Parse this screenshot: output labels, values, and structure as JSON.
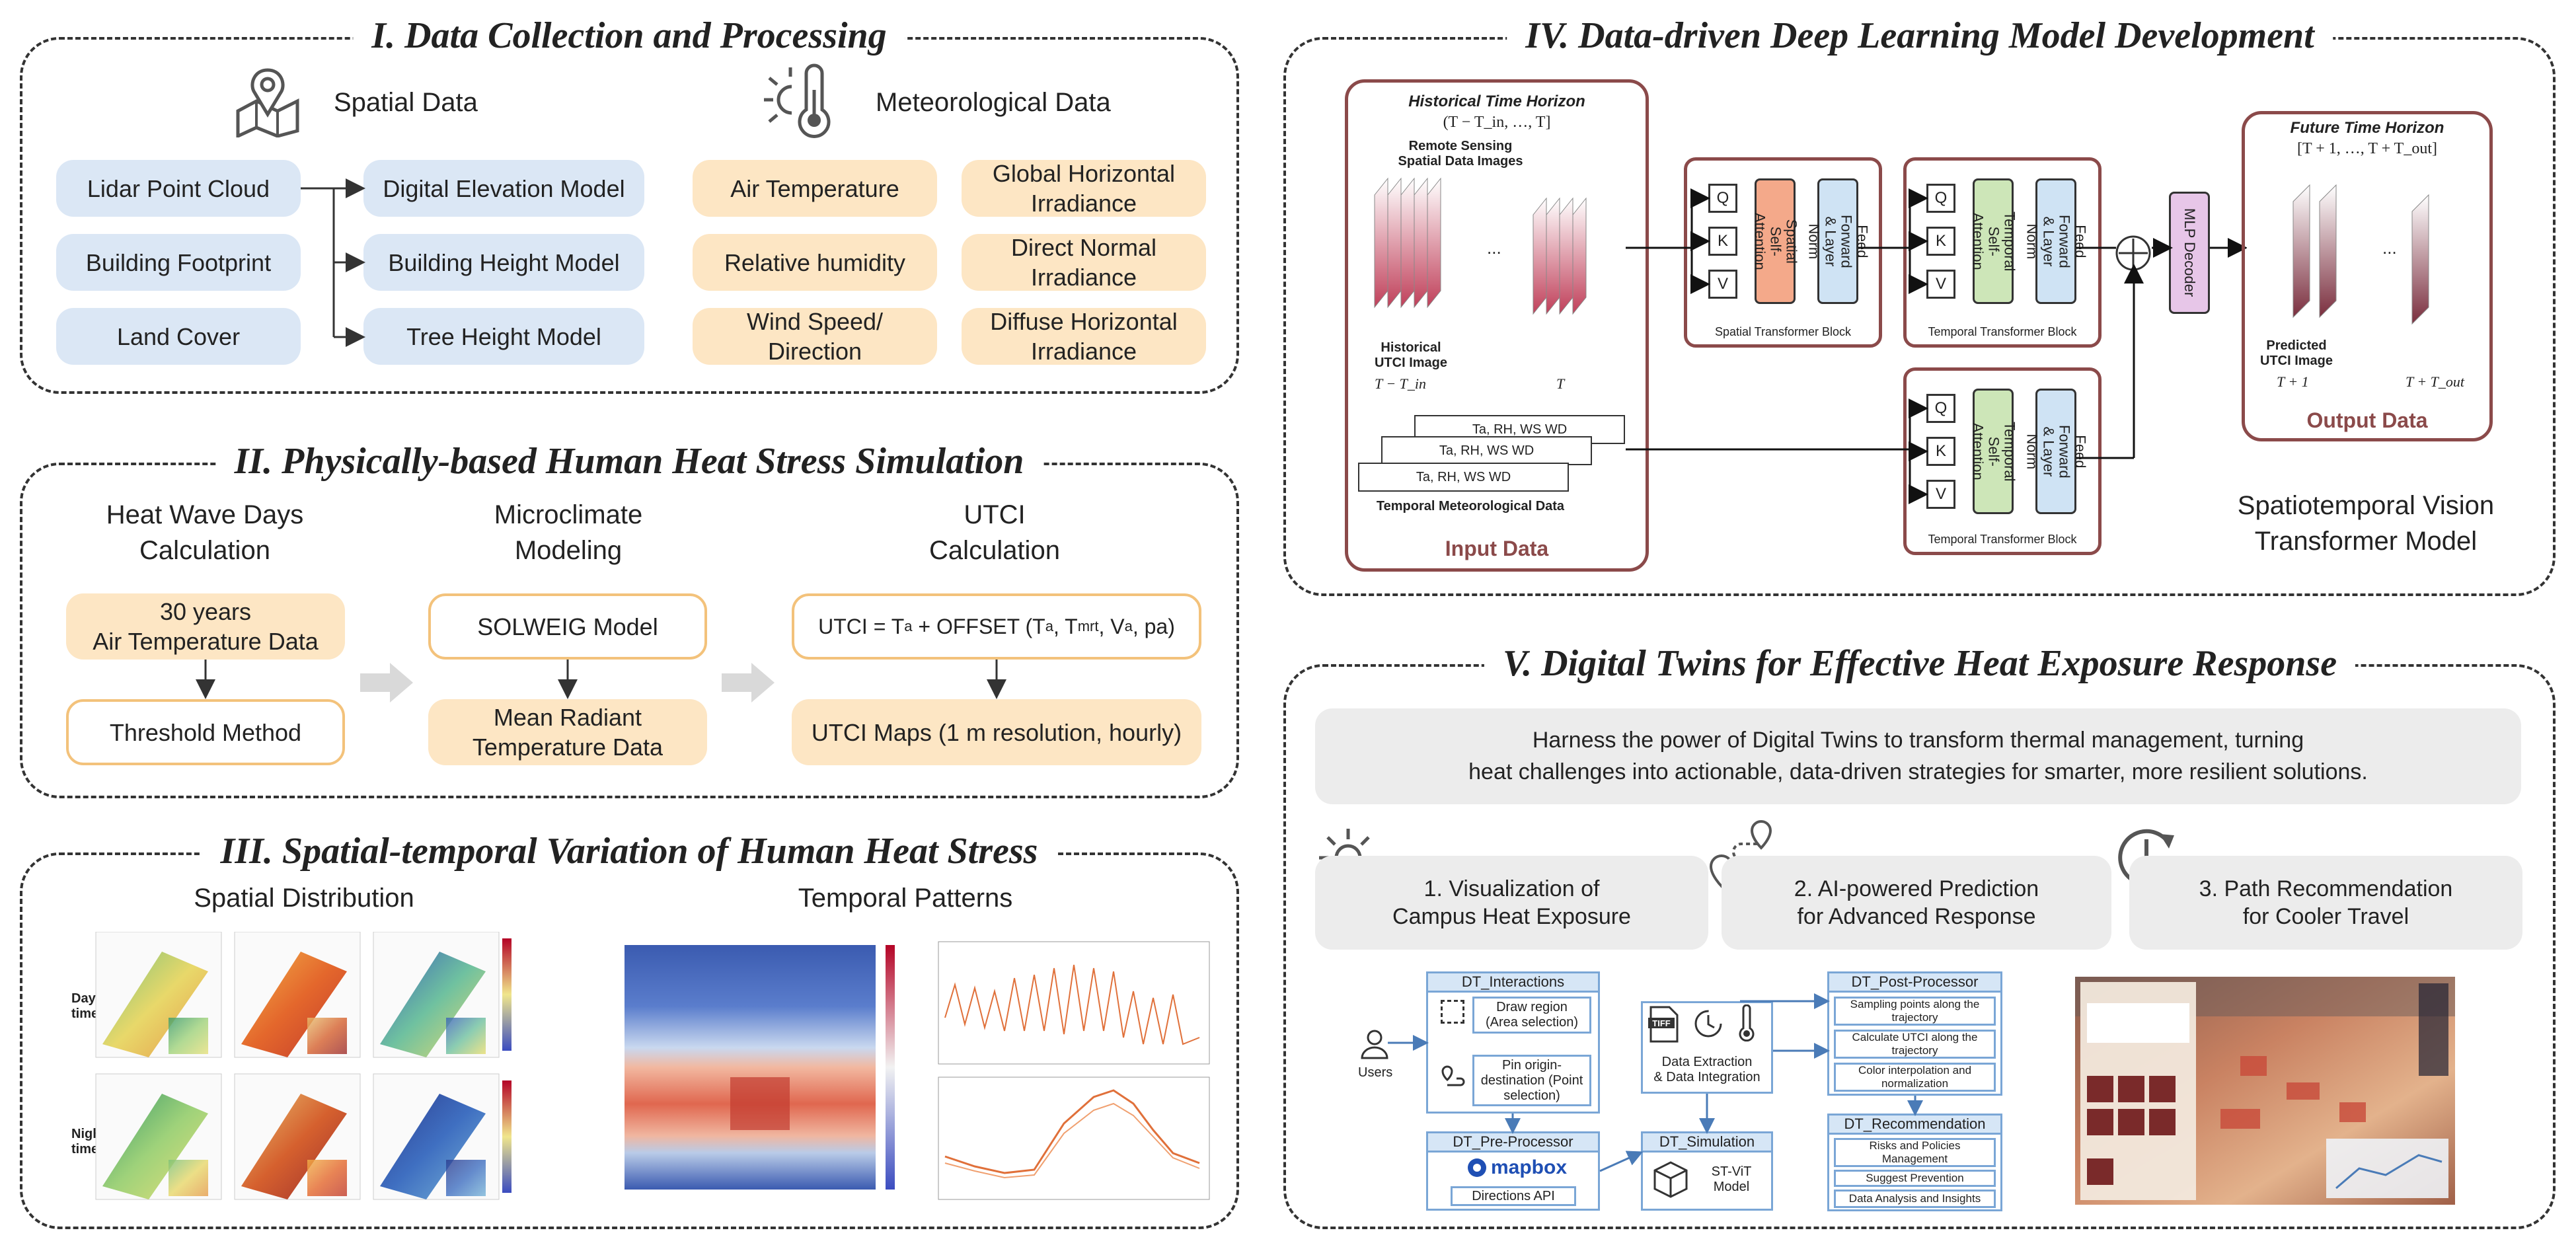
{
  "sections": {
    "s1": "I. Data Collection and Processing",
    "s2": "II. Physically-based Human Heat Stress Simulation",
    "s3": "III. Spatial-temporal Variation of Human Heat Stress",
    "s4": "IV. Data-driven Deep Learning Model Development",
    "s5": "V. Digital Twins for Effective Heat Exposure Response"
  },
  "s1": {
    "spatial_title": "Spatial Data",
    "met_title": "Meteorological Data",
    "left": [
      "Lidar Point Cloud",
      "Building Footprint",
      "Land Cover"
    ],
    "mid": [
      "Digital Elevation Model",
      "Building Height Model",
      "Tree Height Model"
    ],
    "met1": [
      "Air Temperature",
      "Relative humidity",
      "Wind Speed/\nDirection"
    ],
    "met2": [
      "Global Horizontal\nIrradiance",
      "Direct Normal\nIrradiance",
      "Diffuse Horizontal\nIrradiance"
    ]
  },
  "s2": {
    "h1": "Heat Wave Days\nCalculation",
    "h2": "Microclimate\nModeling",
    "h3": "UTCI\nCalculation",
    "b1": "30 years\nAir Temperature Data",
    "b2": "Threshold Method",
    "b3": "SOLWEIG Model",
    "b4": "Mean Radiant\nTemperature Data",
    "b5": "UTCI Maps (1 m resolution, hourly)"
  },
  "s3": {
    "spatial": "Spatial Distribution",
    "temporal": "Temporal Patterns",
    "day": "Day\ntime",
    "night": "Night\ntime"
  },
  "s4": {
    "hist_title": "Historical Time Horizon",
    "hist_range": "(T − T_in, …, T]",
    "rs": "Remote Sensing\nSpatial Data Images",
    "hist_utci": "Historical\nUTCI Image",
    "t_in": "T − T_in",
    "t": "T",
    "ellipsis": "...",
    "met_rows": [
      "Ta, RH, WS WD",
      "Ta, RH, WS WD",
      "Ta, RH, WS WD"
    ],
    "met_caption": "Temporal Meteorological Data",
    "input": "Input Data",
    "spatial_block": "Spatial Transformer Block",
    "temporal_block": "Temporal Transformer Block",
    "spatial_sa": "Spatial\nSelf-Attention",
    "temporal_sa": "Temporal\nSelf-Attention",
    "ff": "Feed Forward\n& Layer Norm",
    "q": "Q",
    "k": "K",
    "v": "V",
    "mlp": "MLP Decoder",
    "future_title": "Future Time Horizon",
    "future_range": "[T + 1, …, T + T_out]",
    "pred": "Predicted\nUTCI Image",
    "t1": "T + 1",
    "tout": "T + T_out",
    "output": "Output Data",
    "model": "Spatiotemporal Vision\nTransformer Model"
  },
  "s5": {
    "banner": "Harness the power of Digital Twins to transform thermal management, turning\nheat challenges into actionable, data-driven strategies for smarter, more resilient solutions.",
    "c1": "1. Visualization of\nCampus Heat Exposure",
    "c2": "2. AI-powered Prediction\nfor Advanced Response",
    "c3": "3. Path Recommendation\nfor Cooler Travel",
    "dt_inter": "DT_Interactions",
    "draw": "Draw region\n(Area selection)",
    "pin": "Pin origin-\ndestination (Point\nselection)",
    "users": "Users",
    "dt_pre": "DT_Pre-Processor",
    "mapbox": "mapbox",
    "dir_api": "Directions API",
    "extract": "Data Extraction\n& Data Integration",
    "dt_sim": "DT_Simulation",
    "stvit": "ST-ViT\nModel",
    "dt_post": "DT_Post-Processor",
    "post": [
      "Sampling points along the\ntrajectory",
      "Calculate UTCI along the\ntrajectory",
      "Color interpolation and\nnormalization"
    ],
    "dt_rec": "DT_Recommendation",
    "rec": [
      "Risks and Policies\nManagement",
      "Suggest Prevention",
      "Data Analysis and Insights"
    ],
    "tiff": "TIFF"
  },
  "colors": {
    "orange": "#f3c27b",
    "blue": "#dbe7f5",
    "accent_red": "#8b4a4a"
  }
}
